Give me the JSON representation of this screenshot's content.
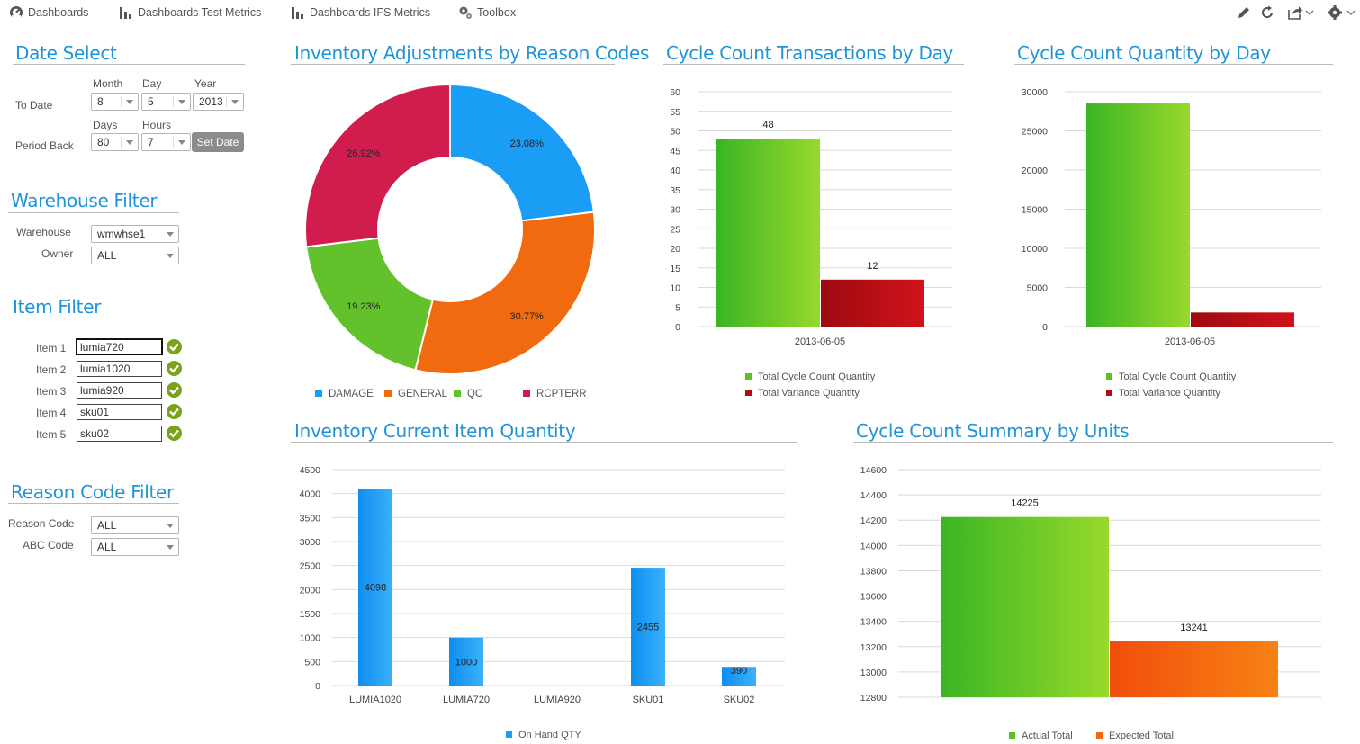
{
  "nav": {
    "items": [
      {
        "label": "Dashboards",
        "icon": "dashboard-gauge-icon"
      },
      {
        "label": "Dashboards Test Metrics",
        "icon": "bar-chart-icon"
      },
      {
        "label": "Dashboards IFS Metrics",
        "icon": "bar-chart-icon"
      },
      {
        "label": "Toolbox",
        "icon": "gears-icon"
      }
    ],
    "tools": [
      "pencil-icon",
      "refresh-icon",
      "share-icon",
      "gear-icon"
    ]
  },
  "date_select": {
    "title": "Date Select",
    "month_label": "Month",
    "day_label": "Day",
    "year_label": "Year",
    "to_date_label": "To Date",
    "month": "8",
    "day": "5",
    "year": "2013",
    "days_label": "Days",
    "hours_label": "Hours",
    "period_back_label": "Period Back",
    "days": "80",
    "hours": "7",
    "set_date": "Set Date"
  },
  "warehouse_filter": {
    "title": "Warehouse Filter",
    "warehouse_label": "Warehouse",
    "warehouse": "wmwhse1",
    "owner_label": "Owner",
    "owner": "ALL"
  },
  "item_filter": {
    "title": "Item Filter",
    "items": [
      {
        "label": "Item 1",
        "value": "lumia720"
      },
      {
        "label": "Item 2",
        "value": "lumia1020"
      },
      {
        "label": "Item 3",
        "value": "lumia920"
      },
      {
        "label": "Item 4",
        "value": "sku01"
      },
      {
        "label": "Item 5",
        "value": "sku02"
      }
    ]
  },
  "reason_filter": {
    "title": "Reason Code Filter",
    "reason_label": "Reason Code",
    "reason": "ALL",
    "abc_label": "ABC Code",
    "abc": "ALL"
  },
  "chart_data": [
    {
      "id": "adjustments",
      "type": "pie",
      "title": "Inventory Adjustments by Reason Codes",
      "categories": [
        "DAMAGE",
        "GENERAL",
        "QC",
        "RCPTERR"
      ],
      "values": [
        23.08,
        30.77,
        19.23,
        26.92
      ],
      "labels": [
        "23.08%",
        "30.77%",
        "19.23%",
        "26.92%"
      ],
      "colors": [
        "#1a9df5",
        "#f26a10",
        "#63c22c",
        "#d01d4e"
      ]
    },
    {
      "id": "cc_transactions",
      "type": "bar",
      "title": "Cycle Count Transactions by Day",
      "categories": [
        "2013-06-05"
      ],
      "series": [
        {
          "name": "Total Cycle Count Quantity",
          "values": [
            48
          ],
          "color": "#5cbf2a"
        },
        {
          "name": "Total Variance Quantity",
          "values": [
            12
          ],
          "color": "#b00d12"
        }
      ],
      "ylim": [
        0,
        60
      ],
      "yticks": [
        0,
        5,
        10,
        15,
        20,
        25,
        30,
        35,
        40,
        45,
        50,
        55,
        60
      ],
      "data_labels": true
    },
    {
      "id": "cc_quantity",
      "type": "bar",
      "title": "Cycle Count Quantity by Day",
      "categories": [
        "2013-06-05"
      ],
      "series": [
        {
          "name": "Total Cycle Count Quantity",
          "values": [
            28500
          ],
          "color": "#5cbf2a"
        },
        {
          "name": "Total Variance Quantity",
          "values": [
            1800
          ],
          "color": "#b00d12"
        }
      ],
      "ylim": [
        0,
        30000
      ],
      "yticks": [
        0,
        5000,
        10000,
        15000,
        20000,
        25000,
        30000
      ],
      "data_labels": false
    },
    {
      "id": "item_qty",
      "type": "bar",
      "title": "Inventory Current Item Quantity",
      "categories": [
        "LUMIA1020",
        "LUMIA720",
        "LUMIA920",
        "SKU01",
        "SKU02"
      ],
      "series": [
        {
          "name": "On Hand QTY",
          "values": [
            4098,
            1000,
            0,
            2455,
            390
          ],
          "color": "#1a9df5"
        }
      ],
      "ylim": [
        0,
        4500
      ],
      "yticks": [
        0,
        500,
        1000,
        1500,
        2000,
        2500,
        3000,
        3500,
        4000,
        4500
      ],
      "data_labels": true,
      "hide_zero_labels": true
    },
    {
      "id": "cc_summary",
      "type": "bar",
      "title": "Cycle Count Summary by Units",
      "categories": [
        ""
      ],
      "series": [
        {
          "name": "Actual Total",
          "values": [
            14225
          ],
          "color": "#5cbf2a"
        },
        {
          "name": "Expected Total",
          "values": [
            13241
          ],
          "color": "#f26a10"
        }
      ],
      "ylim": [
        12800,
        14600
      ],
      "yticks": [
        12800,
        13000,
        13200,
        13400,
        13600,
        13800,
        14000,
        14200,
        14400,
        14600
      ],
      "data_labels": true
    }
  ]
}
